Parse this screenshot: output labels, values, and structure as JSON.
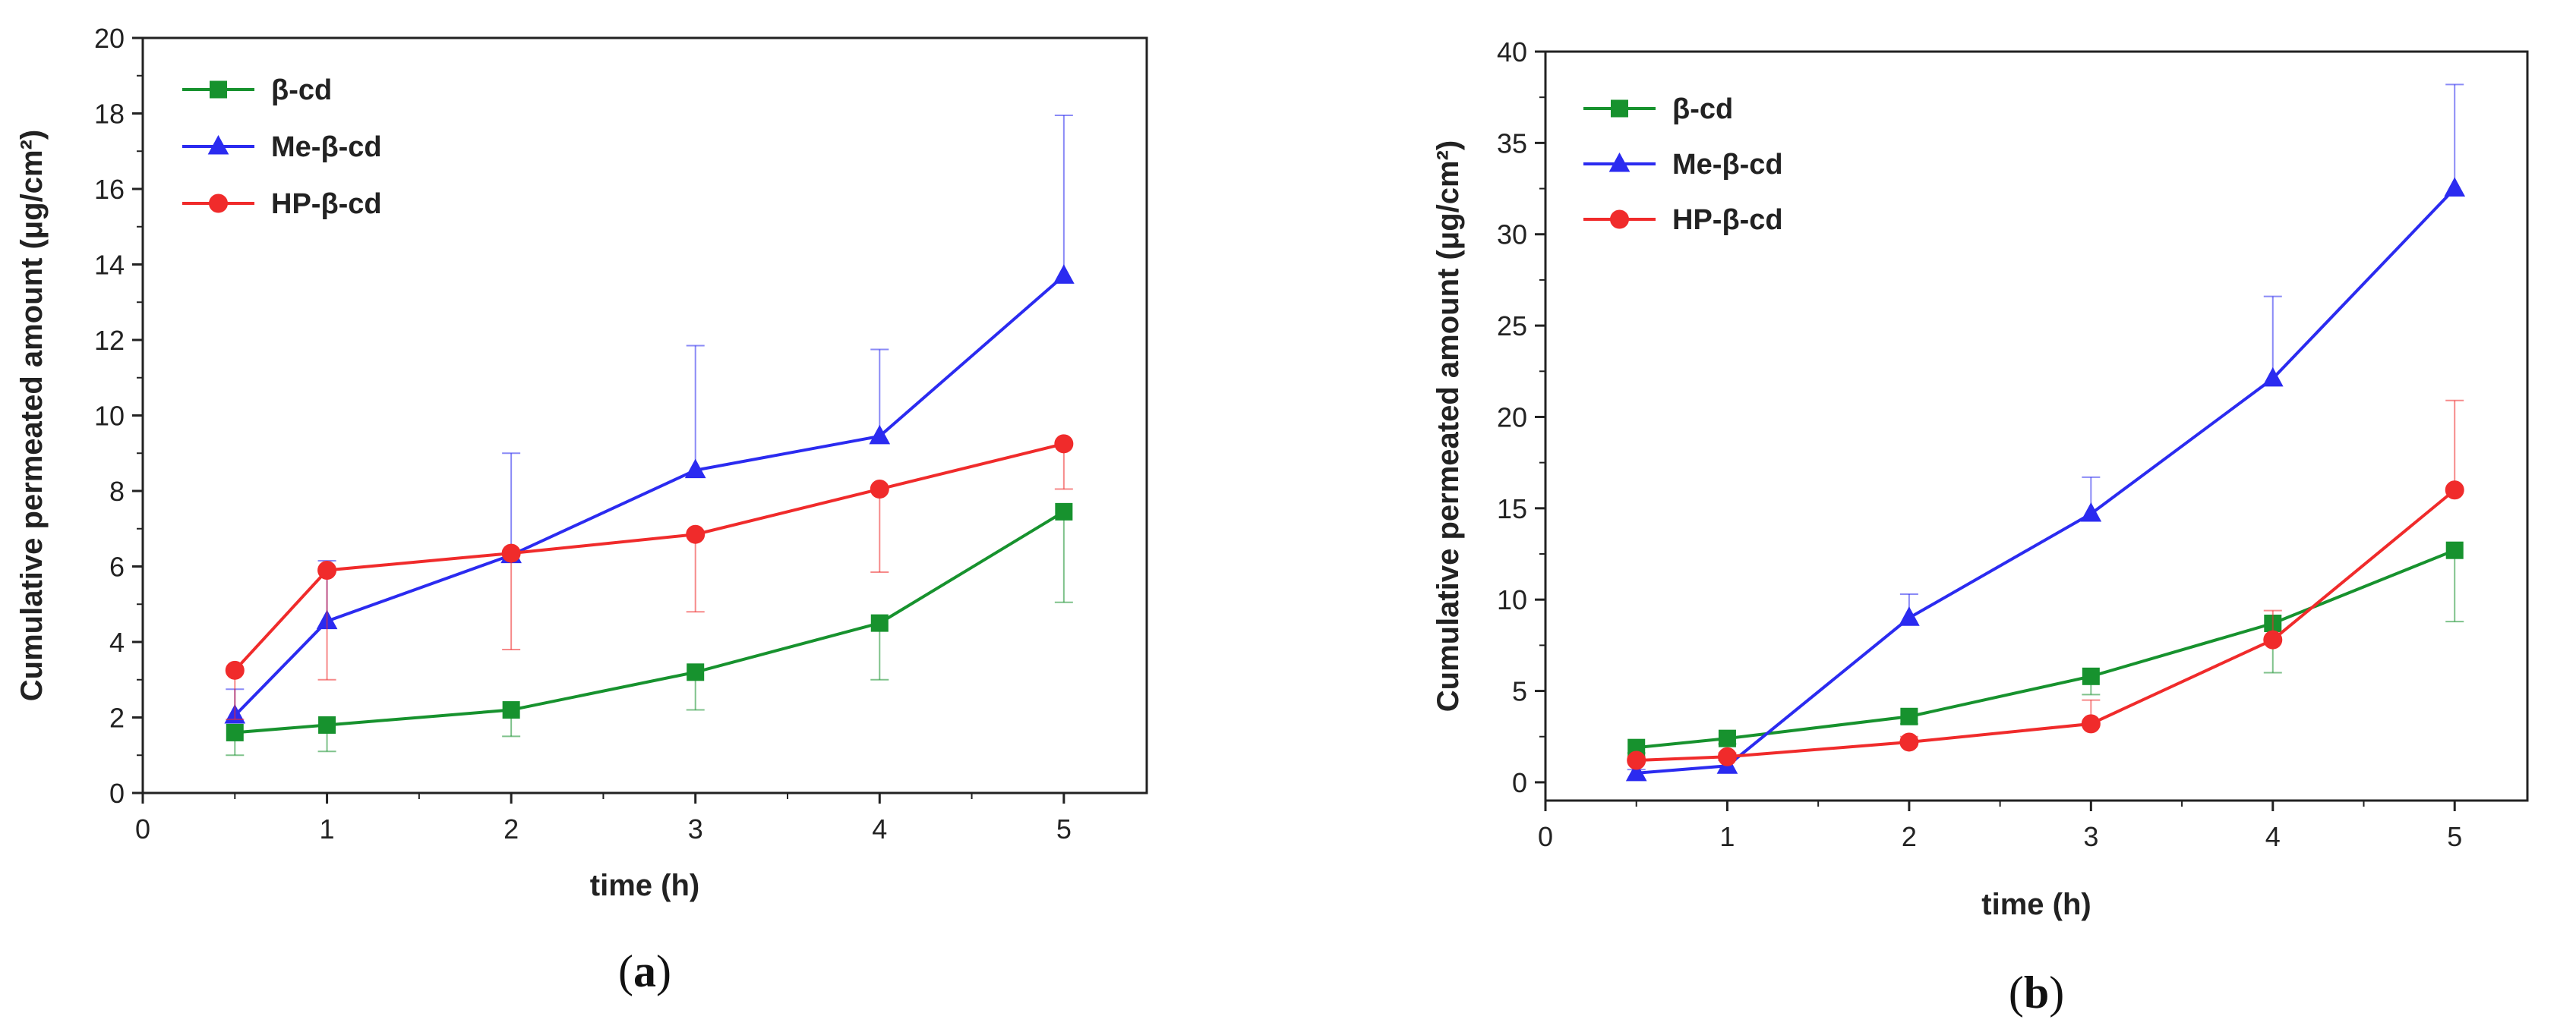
{
  "colors": {
    "beta_cd": "#17922e",
    "me_beta_cd": "#2b2bf0",
    "hp_beta_cd": "#f02b2b"
  },
  "chart_data": [
    {
      "id": "a",
      "type": "line",
      "panel_label": "a",
      "xlabel": "time (h)",
      "ylabel": "Cumulative permeated amount (μg/cm²)",
      "xlim": [
        0,
        5.45
      ],
      "ylim": [
        0,
        20
      ],
      "xticks": [
        0,
        1,
        2,
        3,
        4,
        5
      ],
      "yticks": [
        0,
        2,
        4,
        6,
        8,
        10,
        12,
        14,
        16,
        18,
        20
      ],
      "legend_position": "top-left",
      "x": [
        0.5,
        1,
        2,
        3,
        4,
        5
      ],
      "series": [
        {
          "name": "β-cd",
          "marker": "square",
          "color": "#17922e",
          "values": [
            1.6,
            1.8,
            2.2,
            3.2,
            4.5,
            7.45
          ],
          "errors": [
            0.6,
            0.7,
            0.7,
            1.0,
            1.5,
            2.4
          ],
          "error_direction": "down"
        },
        {
          "name": "Me-β-cd",
          "marker": "triangle",
          "color": "#2b2bf0",
          "values": [
            2.05,
            4.55,
            6.3,
            8.55,
            9.45,
            13.7
          ],
          "errors": [
            0.7,
            1.6,
            2.7,
            3.3,
            2.3,
            4.25
          ],
          "error_direction": "up"
        },
        {
          "name": "HP-β-cd",
          "marker": "circle",
          "color": "#f02b2b",
          "values": [
            3.25,
            5.9,
            6.35,
            6.85,
            8.05,
            9.25
          ],
          "errors": [
            1.3,
            2.9,
            2.55,
            2.05,
            2.2,
            1.2
          ],
          "error_direction": "down"
        }
      ]
    },
    {
      "id": "b",
      "type": "line",
      "panel_label": "b",
      "xlabel": "time (h)",
      "ylabel": "Cumulative permeated amount (μg/cm²)",
      "xlim": [
        0,
        5.4
      ],
      "ylim": [
        -1,
        40
      ],
      "xticks": [
        0,
        1,
        2,
        3,
        4,
        5
      ],
      "yticks": [
        0,
        5,
        10,
        15,
        20,
        25,
        30,
        35,
        40
      ],
      "legend_position": "top-left",
      "x": [
        0.5,
        1,
        2,
        3,
        4,
        5
      ],
      "series": [
        {
          "name": "β-cd",
          "marker": "square",
          "color": "#17922e",
          "values": [
            1.9,
            2.4,
            3.6,
            5.8,
            8.7,
            12.7
          ],
          "errors": [
            0.3,
            0.3,
            0.4,
            1.0,
            2.7,
            3.9
          ],
          "error_direction": "down"
        },
        {
          "name": "Me-β-cd",
          "marker": "triangle",
          "color": "#2b2bf0",
          "values": [
            0.5,
            0.9,
            9.0,
            14.7,
            22.1,
            32.5
          ],
          "errors": [
            0.2,
            0.3,
            1.3,
            2.0,
            4.5,
            5.7
          ],
          "error_direction": "up"
        },
        {
          "name": "HP-β-cd",
          "marker": "circle",
          "color": "#f02b2b",
          "values": [
            1.2,
            1.4,
            2.2,
            3.2,
            7.8,
            16.0
          ],
          "errors": [
            0.2,
            0.2,
            0.3,
            1.3,
            1.6,
            4.9
          ],
          "error_direction": "up"
        }
      ]
    }
  ]
}
